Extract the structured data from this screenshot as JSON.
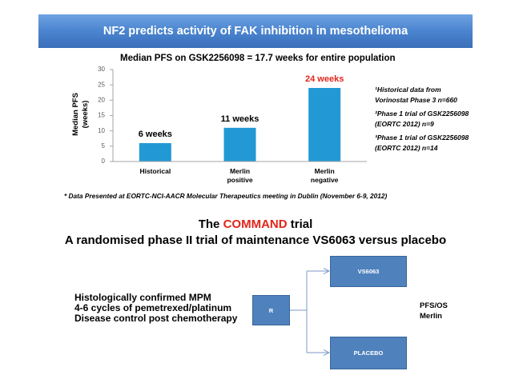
{
  "slide": {
    "title": "NF2 predicts activity of FAK inhibition in mesothelioma"
  },
  "colors": {
    "banner": "#4a84cf",
    "highlight": "#e0251b",
    "arm_box": "#4f81bd",
    "connector": "#7b98c9"
  },
  "chart_data": {
    "type": "bar",
    "title": "Median PFS on GSK2256098 = 17.7 weeks for entire population",
    "categories": [
      "Historical",
      "Merlin positive",
      "Merlin negative"
    ],
    "values": [
      6,
      11,
      24
    ],
    "value_labels": [
      "6 weeks",
      "11 weeks",
      "24 weeks"
    ],
    "value_label_colors": [
      "#000000",
      "#000000",
      "#e0251b"
    ],
    "bar_color": "#2299d4",
    "ylabel": [
      "Median PFS",
      "(weeks)"
    ],
    "ylim": [
      0,
      30
    ],
    "yticks": [
      0,
      5,
      10,
      15,
      20,
      25,
      30
    ],
    "grid": false,
    "annotations": [
      {
        "lines": [
          "¹Historical data from",
          "Vorinostat Phase 3 n=660"
        ]
      },
      {
        "lines": [
          "²Phase 1 trial of GSK2256098",
          "(EORTC 2012) n=9"
        ]
      },
      {
        "lines": [
          "³Phase 1 trial of GSK2256098",
          "(EORTC 2012) n=14"
        ]
      }
    ],
    "footnote": "* Data Presented at EORTC-NCI-AACR Molecular Therapeutics meeting in Dublin (November 6-9, 2012)"
  },
  "trial": {
    "heading": {
      "prefix": "The ",
      "highlight": "COMMAND",
      "suffix": " trial"
    },
    "subtitle": "A randomised phase II trial of maintenance VS6063 versus placebo",
    "eligibility": [
      "Histologically confirmed MPM",
      "4-6 cycles of pemetrexed/platinum",
      "Disease control post chemotherapy"
    ],
    "randomisation": "R",
    "arms": [
      "VS6063",
      "PLACEBO"
    ],
    "endpoints": [
      "PFS/OS",
      "Merlin"
    ]
  }
}
